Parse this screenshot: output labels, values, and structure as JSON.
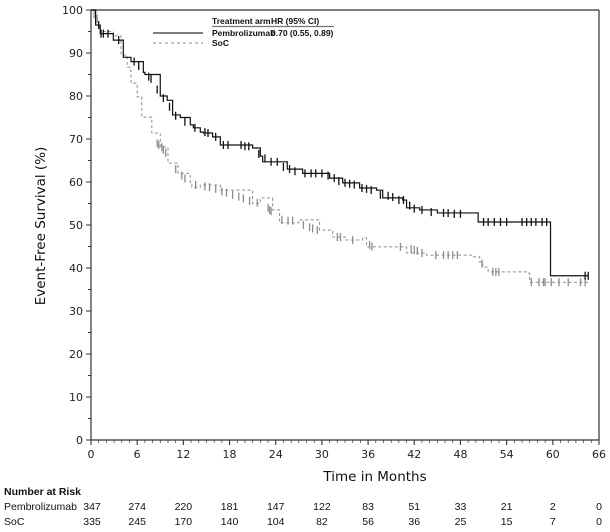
{
  "chart_data": {
    "type": "line",
    "subtype": "kaplan-meier",
    "title": "",
    "xlabel": "Time in Months",
    "ylabel": "Event-Free Survival (%)",
    "xlim": [
      0,
      66
    ],
    "ylim": [
      0,
      100
    ],
    "x_ticks": [
      0,
      6,
      12,
      18,
      24,
      30,
      36,
      42,
      48,
      54,
      60,
      66
    ],
    "x_tick_labels": [
      "0",
      "6",
      "12",
      "18",
      "24",
      "30",
      "36",
      "42",
      "48",
      "54",
      "60",
      "66"
    ],
    "y_ticks": [
      0,
      10,
      20,
      30,
      40,
      50,
      60,
      70,
      80,
      90,
      100
    ],
    "y_tick_labels": [
      "0",
      "10",
      "20",
      "30",
      "40",
      "50",
      "60",
      "70",
      "80",
      "90",
      "100"
    ],
    "grid": false,
    "legend": {
      "placement": "top-center",
      "header_arm": "Treatment arm",
      "header_hr": "HR (95% CI)",
      "entries": [
        {
          "name": "Pembrolizumab",
          "hr": "0.70 (0.55, 0.89)",
          "style": "solid",
          "color": "#000000"
        },
        {
          "name": "SoC",
          "hr": "",
          "style": "dashed",
          "color": "#8c8c8c"
        }
      ]
    },
    "series": [
      {
        "name": "Pembrolizumab",
        "color": "#111111",
        "style": "solid",
        "x": [
          0,
          0.6,
          0.6,
          1.2,
          1.2,
          2.9,
          2.9,
          4.2,
          5.2,
          6.8,
          7.0,
          9.0,
          9.9,
          10.6,
          11.6,
          12.9,
          13.3,
          14.2,
          14.6,
          15.8,
          16.8,
          18.4,
          21.0,
          21.5,
          22.0,
          22.3,
          24.5,
          25.5,
          27.5,
          30.6,
          31.0,
          32.7,
          34.9,
          37.1,
          37.9,
          40.5,
          41.0,
          42.7,
          45.0,
          50.3,
          50.3,
          59.7,
          59.7,
          64.6
        ],
        "y": [
          100,
          100,
          96.5,
          96.5,
          94.5,
          94.5,
          93,
          89,
          88,
          85.5,
          85,
          80,
          79,
          75.6,
          75,
          73.3,
          72.6,
          71.6,
          71.4,
          70.5,
          68.6,
          68.6,
          67.9,
          67.9,
          66,
          64.7,
          64.7,
          63,
          62,
          62,
          60.9,
          59.8,
          58.6,
          58.1,
          56.3,
          55.8,
          54,
          53.5,
          52.8,
          52.3,
          50.7,
          50.7,
          38.2,
          38.2
        ],
        "censor_x": [
          1.0,
          1.3,
          1.6,
          2.2,
          3.6,
          5.6,
          6.2,
          7.5,
          7.8,
          8.6,
          9.4,
          10.2,
          11.0,
          12.2,
          13.5,
          14.8,
          15.2,
          16.2,
          17.2,
          17.8,
          19.5,
          20.0,
          20.5,
          21.8,
          22.6,
          23.4,
          24.2,
          25.0,
          25.8,
          26.5,
          27.8,
          28.6,
          29.2,
          30.0,
          30.8,
          31.6,
          32.2,
          33.0,
          33.6,
          34.2,
          35.2,
          35.8,
          36.4,
          37.6,
          38.6,
          39.2,
          40.0,
          40.6,
          41.4,
          42.0,
          43.0,
          44.2,
          45.8,
          46.4,
          47.2,
          48.0,
          51.0,
          51.6,
          52.4,
          53.2,
          54.0,
          56.0,
          56.6,
          57.2,
          57.8,
          58.6,
          59.2,
          64.2,
          64.6
        ],
        "censor_y": [
          96.5,
          94.5,
          94.5,
          94.5,
          93,
          88,
          87,
          84.5,
          84,
          81.5,
          79.5,
          77.5,
          75.4,
          74,
          72.6,
          71.6,
          71.4,
          70.5,
          68.6,
          68.6,
          68.6,
          68.3,
          68.3,
          66.5,
          65.5,
          64.7,
          64.7,
          63.5,
          63,
          62.5,
          62,
          62,
          62,
          62,
          61.5,
          60.9,
          60.2,
          59.8,
          59.6,
          59.4,
          58.6,
          58.4,
          58.1,
          57,
          56.8,
          56.5,
          55.8,
          55.8,
          54.5,
          53.8,
          53.5,
          53,
          52.8,
          52.8,
          52.6,
          52.6,
          50.7,
          50.7,
          50.7,
          50.7,
          50.7,
          50.7,
          50.7,
          50.7,
          50.7,
          50.7,
          50.7,
          38.2,
          38.2
        ]
      },
      {
        "name": "SoC",
        "color": "#8c8c8c",
        "style": "dashed",
        "x": [
          0,
          0.6,
          0.6,
          1.2,
          2.9,
          3.9,
          4.7,
          5.1,
          5.2,
          6.0,
          6.6,
          7.9,
          9.0,
          10.0,
          11.3,
          12.9,
          13.1,
          14.2,
          16.8,
          21.0,
          22.0,
          23.6,
          24.5,
          27.0,
          29.7,
          30.1,
          31.4,
          33.0,
          35.3,
          35.8,
          38.8,
          41.0,
          43.6,
          49.6,
          50.5,
          50.9,
          51.6,
          56.8,
          57.0,
          64.6
        ],
        "y": [
          100,
          100,
          96.5,
          95,
          94,
          89.5,
          86.7,
          86,
          83,
          79.8,
          75.1,
          71.4,
          68.1,
          64.4,
          62,
          59.8,
          58.8,
          59.3,
          58.1,
          55,
          56.3,
          53.5,
          50.5,
          51.2,
          48.8,
          48.8,
          47.2,
          46.5,
          47,
          44.9,
          44.9,
          43.5,
          43,
          42.6,
          41.4,
          40.2,
          39.1,
          38.8,
          36.7,
          36.7
        ],
        "censor_x": [
          0.4,
          0.8,
          8.6,
          8.8,
          9.2,
          9.4,
          9.7,
          11.0,
          11.8,
          12.2,
          13.6,
          14.8,
          15.4,
          16.2,
          17.0,
          17.6,
          18.4,
          19.2,
          19.8,
          20.6,
          21.6,
          23.0,
          23.2,
          23.4,
          24.8,
          25.6,
          26.2,
          27.6,
          28.4,
          28.8,
          29.4,
          32.0,
          32.4,
          34.0,
          36.2,
          36.5,
          40.2,
          41.6,
          42.0,
          42.4,
          43.0,
          44.8,
          45.8,
          46.4,
          47.0,
          47.6,
          50.8,
          52.2,
          52.6,
          53.0,
          57.2,
          58.2,
          58.8,
          59.0,
          59.8,
          60.8,
          62.0,
          63.6,
          64.2
        ],
        "censor_y": [
          99,
          98,
          69,
          68.6,
          68.1,
          67.5,
          66.8,
          63,
          61.5,
          60.8,
          59.3,
          59,
          58.8,
          58.4,
          57.8,
          57.5,
          57.0,
          56.6,
          56.2,
          55.6,
          55.2,
          54,
          53.5,
          53.2,
          51.2,
          51,
          51,
          50,
          49.5,
          49.2,
          48.8,
          47.2,
          47.2,
          46.5,
          45.3,
          45.0,
          44.9,
          44.4,
          44.2,
          44,
          43.5,
          43,
          43,
          43,
          43,
          43,
          41,
          39.1,
          39.1,
          39.1,
          36.7,
          36.7,
          36.7,
          36.7,
          36.7,
          36.7,
          36.7,
          36.7,
          36.7
        ]
      }
    ],
    "risk_table": {
      "title": "Number at Risk",
      "times": [
        0,
        6,
        12,
        18,
        24,
        30,
        36,
        42,
        48,
        54,
        60,
        66
      ],
      "rows": [
        {
          "label": "Pembrolizumab",
          "values": [
            "347",
            "274",
            "220",
            "181",
            "147",
            "122",
            "83",
            "51",
            "33",
            "21",
            "2",
            "0"
          ]
        },
        {
          "label": "SoC",
          "values": [
            "335",
            "245",
            "170",
            "140",
            "104",
            "82",
            "56",
            "36",
            "25",
            "15",
            "7",
            "0"
          ]
        }
      ]
    }
  }
}
